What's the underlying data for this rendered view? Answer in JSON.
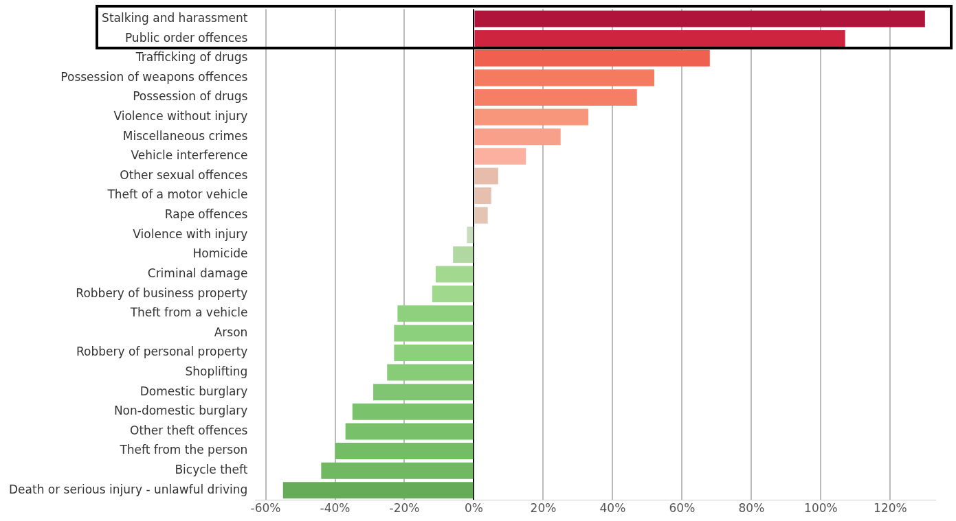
{
  "chart_data": {
    "type": "bar",
    "orientation": "horizontal",
    "categories": [
      "Stalking and harassment",
      "Public order offences",
      "Trafficking of drugs",
      "Possession of weapons offences",
      "Possession of drugs",
      "Violence without injury",
      "Miscellaneous crimes",
      "Vehicle interference",
      "Other sexual offences",
      "Theft of a motor vehicle",
      "Rape offences",
      "Violence with injury",
      "Homicide",
      "Criminal damage",
      "Robbery of business property",
      "Theft from a vehicle",
      "Arson",
      "Robbery of personal property",
      "Shoplifting",
      "Domestic burglary",
      "Non-domestic burglary",
      "Other theft offences",
      "Theft from the person",
      "Bicycle theft",
      "Death or serious injury - unlawful driving"
    ],
    "values": [
      130,
      107,
      68,
      52,
      47,
      33,
      25,
      15,
      7,
      5,
      4,
      -2,
      -6,
      -11,
      -12,
      -22,
      -23,
      -23,
      -25,
      -29,
      -35,
      -37,
      -40,
      -44,
      -55
    ],
    "colors": [
      "#b0143a",
      "#cf2440",
      "#f06050",
      "#f47a60",
      "#f47f65",
      "#f8967c",
      "#f9a08a",
      "#fbb0a0",
      "#e8bcaa",
      "#e6c0ae",
      "#e4c4b2",
      "#c8dcc0",
      "#b0d8a0",
      "#a2d890",
      "#a0d88e",
      "#8ed07e",
      "#8ccf7c",
      "#8ccf7c",
      "#88cc78",
      "#80c672",
      "#7ac26c",
      "#78c06a",
      "#74bc66",
      "#70b862",
      "#66ac58"
    ],
    "xlim": [
      -63,
      133
    ],
    "xticks": [
      {
        "value": -60,
        "label": "-60%"
      },
      {
        "value": -40,
        "label": "-40%"
      },
      {
        "value": -20,
        "label": "-20%"
      },
      {
        "value": 0,
        "label": "0%"
      },
      {
        "value": 20,
        "label": "20%"
      },
      {
        "value": 40,
        "label": "40%"
      },
      {
        "value": 60,
        "label": "60%"
      },
      {
        "value": 80,
        "label": "80%"
      },
      {
        "value": 100,
        "label": "100%"
      },
      {
        "value": 120,
        "label": "120%"
      }
    ],
    "grid": "x",
    "legend": false
  }
}
